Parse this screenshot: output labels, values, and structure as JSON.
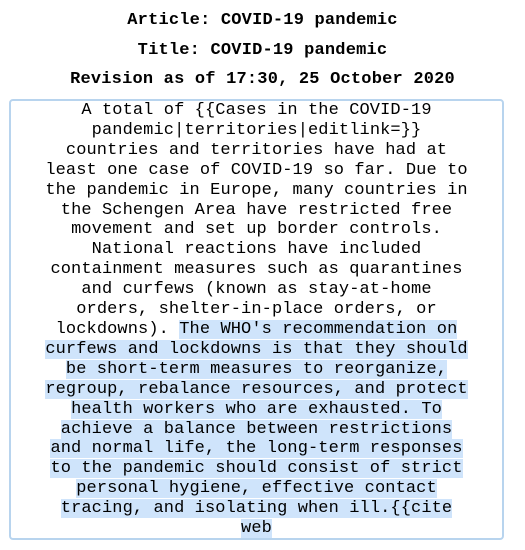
{
  "header": {
    "article": "Article: COVID-19 pandemic",
    "title": "Title: COVID-19 pandemic",
    "revision": "Revision as of 17:30, 25 October 2020"
  },
  "content": {
    "plain_lines": [
      "A total of {{Cases in the COVID-19",
      "pandemic|territories|editlink=}}",
      "countries and territories have had at",
      "least one case of COVID-19 so far. Due to",
      "the pandemic in Europe, many countries in",
      "the Schengen Area have restricted free",
      "movement and set up border controls.",
      "National reactions have included",
      "containment measures such as quarantines",
      "and curfews (known as stay-at-home",
      "orders, shelter-in-place orders, or"
    ],
    "mixed_line": {
      "plain": "lockdowns). ",
      "highlighted": "The WHO's recommendation on"
    },
    "highlighted_lines": [
      "curfews and lockdowns is that they should",
      "be short-term measures to reorganize,",
      "regroup, rebalance resources, and protect",
      "health workers who are exhausted. To",
      "achieve a balance between restrictions",
      "and normal life, the long-term responses",
      "to the pandemic should consist of strict",
      "personal hygiene, effective contact",
      "tracing, and isolating when ill.{{cite",
      "web"
    ]
  },
  "colors": {
    "highlight": "#cfe4fb",
    "box_border": "#b8d4ee"
  }
}
